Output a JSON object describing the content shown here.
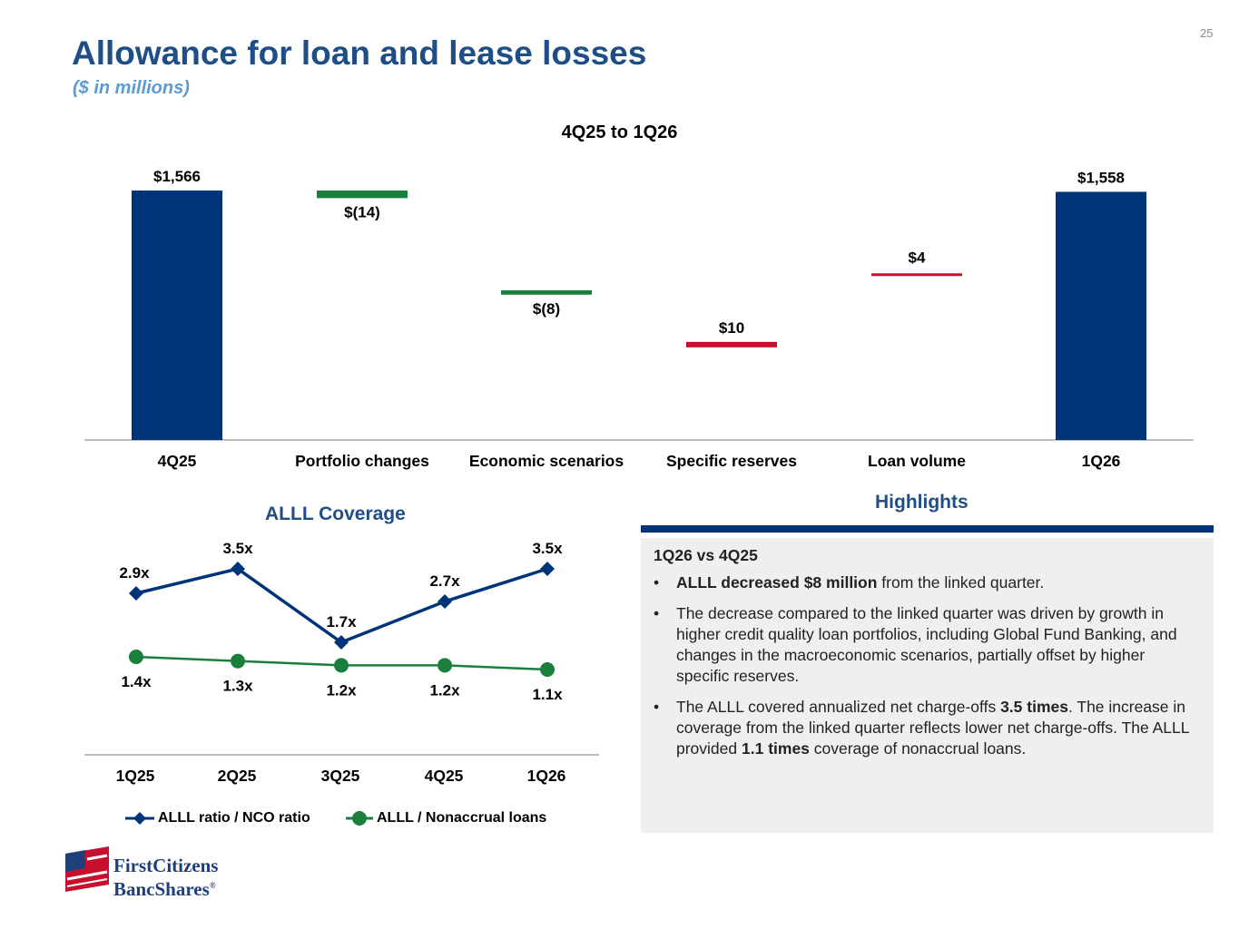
{
  "page_number": "25",
  "title": "Allowance for loan and lease losses",
  "subtitle": "($ in millions)",
  "colors": {
    "navy": "#003478",
    "green": "#1a7f3c",
    "red": "#c8102e",
    "title_blue": "#1f4e86",
    "subtitle_blue": "#5b9bd5",
    "panel_gray": "#efefef"
  },
  "chart_data": [
    {
      "type": "bar",
      "subtype": "waterfall",
      "title": "4Q25 to 1Q26",
      "categories": [
        "4Q25",
        "Portfolio changes",
        "Economic scenarios",
        "Specific reserves",
        "Loan volume",
        "1Q26"
      ],
      "values": [
        1566,
        -14,
        -8,
        10,
        4,
        1558
      ],
      "labels": [
        "$1,566",
        "$(14)",
        "$(8)",
        "$10",
        "$4",
        "$1,558"
      ],
      "kinds": [
        "total",
        "decrease",
        "decrease",
        "increase",
        "increase",
        "total"
      ],
      "ylim": [
        0,
        1600
      ]
    },
    {
      "type": "line",
      "title": "ALLL Coverage",
      "categories": [
        "1Q25",
        "2Q25",
        "3Q25",
        "4Q25",
        "1Q26"
      ],
      "series": [
        {
          "name": "ALLL ratio / NCO ratio",
          "values": [
            2.9,
            3.5,
            1.7,
            2.7,
            3.5
          ],
          "labels": [
            "2.9x",
            "3.5x",
            "1.7x",
            "2.7x",
            "3.5x"
          ],
          "marker": "diamond"
        },
        {
          "name": "ALLL / Nonaccrual loans",
          "values": [
            1.4,
            1.3,
            1.2,
            1.2,
            1.1
          ],
          "labels": [
            "1.4x",
            "1.3x",
            "1.2x",
            "1.2x",
            "1.1x"
          ],
          "marker": "circle"
        }
      ],
      "ylim": [
        0,
        4
      ]
    }
  ],
  "highlights": {
    "title": "Highlights",
    "subheading": "1Q26 vs 4Q25",
    "bullet_char": "•",
    "b1_bold": "ALLL decreased $8 million",
    "b1_rest": " from the linked quarter.",
    "b2": "The decrease compared to the linked quarter was driven by growth in higher credit quality loan portfolios, including Global Fund Banking, and changes in the macroeconomic scenarios, partially offset by higher specific reserves.",
    "b3_a": "The ALLL covered annualized net charge-offs ",
    "b3_b": "3.5 times",
    "b3_c": ". The increase in coverage from the linked quarter reflects lower net charge-offs. The ALLL provided ",
    "b3_d": "1.1 times",
    "b3_e": " coverage of nonaccrual loans."
  },
  "logo": {
    "line1": "FirstCitizens",
    "line2": "BancShares",
    "mark": "®"
  }
}
